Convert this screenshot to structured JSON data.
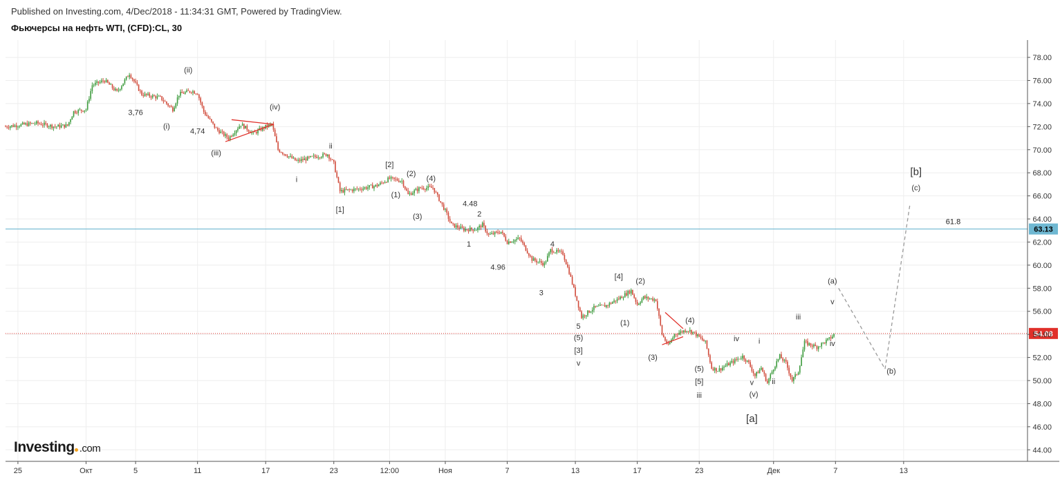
{
  "header": {
    "published": "Published on Investing.com, 4/Dec/2018 - 11:34:31 GMT, Powered by TradingView.",
    "title": "Фьючерсы на нефть WTI, (CFD):CL, 30"
  },
  "logo": {
    "name": "Investing",
    "domain": ".com"
  },
  "colors": {
    "grid": "#eeeeee",
    "axis": "#555555",
    "up": "#3c9a3c",
    "down": "#d04a3a",
    "hline": "#6fb8d2",
    "price_line": "#e0302a",
    "wedge": "#e0302a",
    "projection": "#999999"
  },
  "chart_data": {
    "type": "line",
    "x_ticks": [
      "25",
      "Окт",
      "5",
      "11",
      "17",
      "23",
      "12:00",
      "Ноя",
      "7",
      "13",
      "17",
      "23",
      "Дек",
      "7",
      "13"
    ],
    "y_ticks": [
      "78.00",
      "76.00",
      "74.00",
      "72.00",
      "70.00",
      "68.00",
      "66.00",
      "64.00",
      "62.00",
      "60.00",
      "58.00",
      "56.00",
      "54.00",
      "52.00",
      "50.00",
      "48.00",
      "46.00",
      "44.00"
    ],
    "ylim": [
      43,
      79.5
    ],
    "price_path": [
      [
        0,
        72.0
      ],
      [
        5,
        72.3
      ],
      [
        8,
        72.0
      ],
      [
        10,
        72.1
      ],
      [
        11,
        73.3
      ],
      [
        13,
        73.5
      ],
      [
        14,
        75.6
      ],
      [
        16,
        76.0
      ],
      [
        18,
        75.0
      ],
      [
        20,
        76.6
      ],
      [
        22,
        74.8
      ],
      [
        25,
        74.5
      ],
      [
        27,
        73.5
      ],
      [
        28,
        74.8
      ],
      [
        30,
        75.1
      ],
      [
        31,
        74.9
      ],
      [
        32,
        73.3
      ],
      [
        34,
        71.8
      ],
      [
        36,
        71.0
      ],
      [
        38,
        72.2
      ],
      [
        40,
        71.4
      ],
      [
        42,
        72.0
      ],
      [
        43,
        72.2
      ],
      [
        44,
        70.0
      ],
      [
        47,
        69.0
      ],
      [
        50,
        69.4
      ],
      [
        52,
        69.6
      ],
      [
        53,
        68.8
      ],
      [
        54,
        66.4
      ],
      [
        57,
        66.6
      ],
      [
        60,
        66.9
      ],
      [
        62,
        67.5
      ],
      [
        64,
        67.3
      ],
      [
        65,
        66.1
      ],
      [
        67,
        66.7
      ],
      [
        69,
        66.7
      ],
      [
        71,
        64.7
      ],
      [
        72,
        63.5
      ],
      [
        74,
        63.1
      ],
      [
        76,
        63.1
      ],
      [
        77,
        63.5
      ],
      [
        78,
        62.6
      ],
      [
        80,
        62.9
      ],
      [
        81,
        62.0
      ],
      [
        83,
        62.3
      ],
      [
        85,
        60.5
      ],
      [
        87,
        60.1
      ],
      [
        88,
        61.3
      ],
      [
        90,
        61.0
      ],
      [
        91,
        59.4
      ],
      [
        93,
        55.5
      ],
      [
        95,
        56.3
      ],
      [
        97,
        56.5
      ],
      [
        99,
        57.1
      ],
      [
        101,
        57.8
      ],
      [
        102,
        56.6
      ],
      [
        103,
        57.2
      ],
      [
        105,
        57.0
      ],
      [
        106,
        54.0
      ],
      [
        107,
        53.0
      ],
      [
        108,
        54.0
      ],
      [
        110,
        54.4
      ],
      [
        111,
        54.2
      ],
      [
        113,
        53.3
      ],
      [
        114,
        51.1
      ],
      [
        115,
        50.9
      ],
      [
        117,
        51.5
      ],
      [
        119,
        52.1
      ],
      [
        120,
        51.5
      ],
      [
        121,
        50.4
      ],
      [
        122,
        51.1
      ],
      [
        123,
        49.8
      ],
      [
        124,
        51.1
      ],
      [
        125,
        52.1
      ],
      [
        126,
        51.5
      ],
      [
        127,
        50.0
      ],
      [
        128,
        50.8
      ],
      [
        129,
        53.3
      ],
      [
        131,
        52.9
      ],
      [
        133,
        53.6
      ],
      [
        134,
        54.1
      ]
    ],
    "x_max": 165,
    "current_price": 54.08,
    "current_price_label": "54.08",
    "hline": {
      "value": 63.13,
      "label": "63.13",
      "fib_label": "61.8"
    },
    "wedges": [
      [
        [
          36.5,
          72.6
        ],
        [
          43.3,
          72.2
        ],
        [
          35.5,
          70.7
        ]
      ],
      [
        [
          106.5,
          55.9
        ],
        [
          109.4,
          54.5
        ],
        [
          106.0,
          53.1
        ],
        [
          109.4,
          53.8
        ]
      ]
    ],
    "projection": [
      [
        134.5,
        58.0
      ],
      [
        142,
        51.0
      ],
      [
        146,
        65.2
      ]
    ],
    "annotations": [
      {
        "t": "3,76",
        "x": 21,
        "v": 73.0
      },
      {
        "t": "(ii)",
        "x": 29.5,
        "v": 76.7
      },
      {
        "t": "(i)",
        "x": 26,
        "v": 71.8
      },
      {
        "t": "4,74",
        "x": 31,
        "v": 71.4
      },
      {
        "t": "(iii)",
        "x": 34,
        "v": 69.5
      },
      {
        "t": "(iv)",
        "x": 43.5,
        "v": 73.5
      },
      {
        "t": "ii",
        "x": 52.5,
        "v": 70.1
      },
      {
        "t": "i",
        "x": 47,
        "v": 67.2
      },
      {
        "t": "[2]",
        "x": 62,
        "v": 68.5
      },
      {
        "t": "(2)",
        "x": 65.5,
        "v": 67.7
      },
      {
        "t": "(4)",
        "x": 68.7,
        "v": 67.3
      },
      {
        "t": "(1)",
        "x": 63,
        "v": 65.9
      },
      {
        "t": "[1]",
        "x": 54,
        "v": 64.6
      },
      {
        "t": "(3)",
        "x": 66.5,
        "v": 64.0
      },
      {
        "t": "4.48",
        "x": 75,
        "v": 65.1
      },
      {
        "t": "2",
        "x": 76.5,
        "v": 64.2
      },
      {
        "t": "1",
        "x": 74.8,
        "v": 61.6
      },
      {
        "t": "4.96",
        "x": 79.5,
        "v": 59.6
      },
      {
        "t": "4",
        "x": 88.3,
        "v": 61.6
      },
      {
        "t": "3",
        "x": 86.5,
        "v": 57.4
      },
      {
        "t": "[4]",
        "x": 99,
        "v": 58.8
      },
      {
        "t": "(2)",
        "x": 102.5,
        "v": 58.4
      },
      {
        "t": "(1)",
        "x": 100,
        "v": 54.8
      },
      {
        "t": "5",
        "x": 92.5,
        "v": 54.5
      },
      {
        "t": "(5)",
        "x": 92.5,
        "v": 53.5
      },
      {
        "t": "[3]",
        "x": 92.5,
        "v": 52.4
      },
      {
        "t": "v",
        "x": 92.5,
        "v": 51.3
      },
      {
        "t": "(4)",
        "x": 110.5,
        "v": 55.0
      },
      {
        "t": "(3)",
        "x": 104.5,
        "v": 51.8
      },
      {
        "t": "(5)",
        "x": 112,
        "v": 50.8
      },
      {
        "t": "[5]",
        "x": 112,
        "v": 49.7
      },
      {
        "t": "iii",
        "x": 112,
        "v": 48.5
      },
      {
        "t": "iv",
        "x": 118,
        "v": 53.4
      },
      {
        "t": "i",
        "x": 121.7,
        "v": 53.2
      },
      {
        "t": "v",
        "x": 120.5,
        "v": 49.6
      },
      {
        "t": "(v)",
        "x": 120.8,
        "v": 48.6
      },
      {
        "t": "ii",
        "x": 124,
        "v": 49.7
      },
      {
        "t": "iii",
        "x": 128,
        "v": 55.3
      },
      {
        "t": "[a]",
        "x": 120.5,
        "v": 46.4
      },
      {
        "t": "(a)",
        "x": 133.5,
        "v": 58.4
      },
      {
        "t": "v",
        "x": 133.5,
        "v": 56.6
      },
      {
        "t": "iv",
        "x": 133.5,
        "v": 53.0
      },
      {
        "t": "(b)",
        "x": 143,
        "v": 50.6
      },
      {
        "t": "[b]",
        "x": 147,
        "v": 67.8
      },
      {
        "t": "(c)",
        "x": 147,
        "v": 66.5
      }
    ]
  }
}
